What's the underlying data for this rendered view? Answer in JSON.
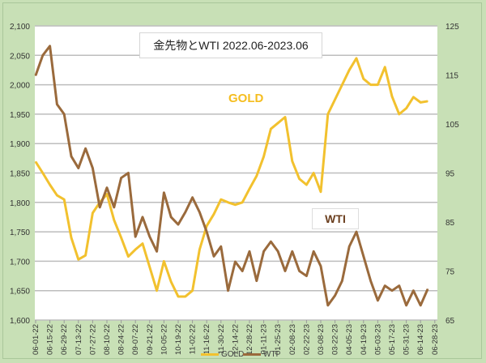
{
  "chart_data": {
    "type": "line",
    "title": "金先物とWTI  2022.06-2023.06",
    "x_tick_labels": [
      "06-01-22",
      "06-15-22",
      "06-29-22",
      "07-13-22",
      "07-27-22",
      "08-10-22",
      "08-24-22",
      "09-07-22",
      "09-21-22",
      "10-05-22",
      "10-19-22",
      "11-02-22",
      "11-16-22",
      "11-30-22",
      "12-14-22",
      "12-28-22",
      "01-11-23",
      "01-25-23",
      "02-08-23",
      "02-22-23",
      "03-08-23",
      "03-22-23",
      "04-05-23",
      "04-19-23",
      "05-03-23",
      "05-17-23",
      "05-31-23",
      "06-14-23",
      "06-28-23"
    ],
    "x": [
      "06-01-22",
      "06-08-22",
      "06-15-22",
      "06-22-22",
      "06-29-22",
      "07-06-22",
      "07-13-22",
      "07-20-22",
      "07-27-22",
      "08-03-22",
      "08-10-22",
      "08-17-22",
      "08-24-22",
      "08-31-22",
      "09-07-22",
      "09-14-22",
      "09-21-22",
      "09-28-22",
      "10-05-22",
      "10-12-22",
      "10-19-22",
      "10-26-22",
      "11-02-22",
      "11-09-22",
      "11-16-22",
      "11-23-22",
      "11-30-22",
      "12-07-22",
      "12-14-22",
      "12-21-22",
      "12-28-22",
      "01-04-23",
      "01-11-23",
      "01-18-23",
      "01-25-23",
      "02-01-23",
      "02-08-23",
      "02-15-23",
      "02-22-23",
      "03-01-23",
      "03-08-23",
      "03-15-23",
      "03-22-23",
      "03-29-23",
      "04-05-23",
      "04-12-23",
      "04-19-23",
      "04-26-23",
      "05-03-23",
      "05-10-23",
      "05-17-23",
      "05-24-23",
      "05-31-23",
      "06-07-23",
      "06-14-23",
      "06-21-23"
    ],
    "left_axis": {
      "ylim": [
        1600,
        2100
      ],
      "ticks": [
        "1,600",
        "1,650",
        "1,700",
        "1,750",
        "1,800",
        "1,850",
        "1,900",
        "1,950",
        "2,000",
        "2,050",
        "2,100"
      ]
    },
    "right_axis": {
      "ylim": [
        65,
        125
      ],
      "ticks": [
        "65",
        "75",
        "85",
        "95",
        "105",
        "115",
        "125"
      ]
    },
    "grid": true,
    "legend_position": "bottom",
    "series": [
      {
        "name": "GOLD",
        "axis": "left",
        "color": "#f2c12e",
        "values": [
          1869,
          1850,
          1830,
          1812,
          1805,
          1740,
          1703,
          1710,
          1782,
          1800,
          1814,
          1770,
          1740,
          1708,
          1720,
          1730,
          1690,
          1650,
          1700,
          1665,
          1640,
          1640,
          1650,
          1720,
          1760,
          1780,
          1805,
          1800,
          1796,
          1800,
          1823,
          1845,
          1878,
          1925,
          1935,
          1945,
          1870,
          1840,
          1830,
          1850,
          1818,
          1950,
          1975,
          2000,
          2025,
          2045,
          2010,
          2000,
          2000,
          2030,
          1980,
          1950,
          1960,
          1979,
          1970,
          1972
        ]
      },
      {
        "name": "WTI",
        "axis": "right",
        "color": "#9a6a3c",
        "values": [
          114.9,
          119,
          120.9,
          109,
          107,
          98.4,
          96,
          100,
          96,
          88,
          92,
          88,
          94,
          95,
          82,
          86,
          82,
          79,
          91,
          86,
          84.5,
          87,
          90,
          87,
          83,
          78,
          80,
          71,
          76.9,
          75,
          79,
          73,
          79,
          81,
          79,
          75,
          79,
          75,
          74,
          79,
          76,
          68,
          70,
          73,
          80,
          83,
          78,
          73,
          69,
          72,
          71,
          72,
          68,
          71,
          68,
          71.3
        ]
      }
    ],
    "annotations": [
      "GOLD",
      "WTI"
    ]
  }
}
